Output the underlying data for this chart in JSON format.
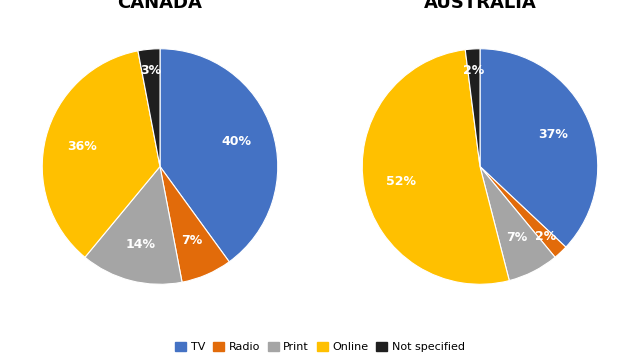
{
  "canada": {
    "title": "CANADA",
    "values": [
      40,
      7,
      14,
      36,
      3
    ],
    "labels": [
      "40%",
      "7%",
      "14%",
      "36%",
      "3%"
    ],
    "colors": [
      "#4472C4",
      "#E26B0A",
      "#A5A5A5",
      "#FFC000",
      "#1F1F1F"
    ],
    "startangle": 90
  },
  "australia": {
    "title": "AUSTRALIA",
    "values": [
      37,
      2,
      7,
      52,
      2
    ],
    "labels": [
      "37%",
      "2%",
      "7%",
      "52%",
      "2%"
    ],
    "colors": [
      "#4472C4",
      "#E26B0A",
      "#A5A5A5",
      "#FFC000",
      "#1F1F1F"
    ],
    "startangle": 90
  },
  "legend_labels": [
    "TV",
    "Radio",
    "Print",
    "Online",
    "Not specified"
  ],
  "legend_colors": [
    "#4472C4",
    "#E26B0A",
    "#A5A5A5",
    "#FFC000",
    "#1F1F1F"
  ],
  "title_fontsize": 13,
  "label_fontsize": 9,
  "legend_fontsize": 8,
  "background_color": "#FFFFFF"
}
